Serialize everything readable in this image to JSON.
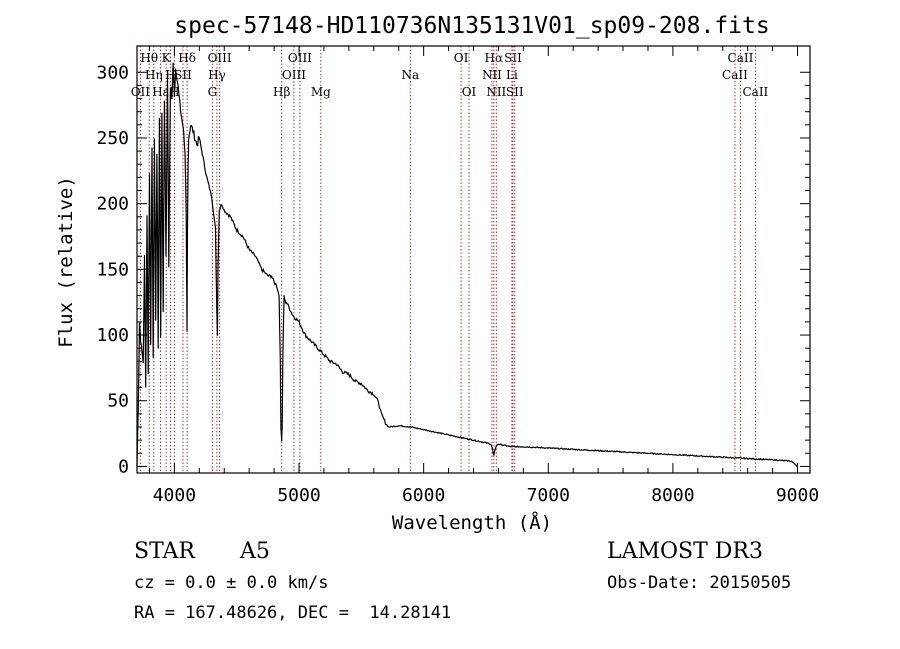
{
  "chart_data": {
    "type": "line",
    "title": "spec-57148-HD110736N135131V01_sp09-208.fits",
    "xlabel": "Wavelength (Å)",
    "ylabel": "Flux (relative)",
    "xlim": [
      3700,
      9100
    ],
    "ylim": [
      -5,
      320
    ],
    "xticks": [
      4000,
      5000,
      6000,
      7000,
      8000,
      9000
    ],
    "yticks": [
      0,
      50,
      100,
      150,
      200,
      250,
      300
    ],
    "series": [
      {
        "name": "flux",
        "x": [
          3700,
          3710,
          3720,
          3735,
          3750,
          3760,
          3770,
          3780,
          3790,
          3800,
          3810,
          3820,
          3830,
          3840,
          3850,
          3860,
          3870,
          3880,
          3890,
          3900,
          3910,
          3920,
          3933,
          3945,
          3955,
          3968,
          3980,
          3990,
          4000,
          4010,
          4030,
          4050,
          4070,
          4085,
          4095,
          4101,
          4105,
          4110,
          4115,
          4130,
          4150,
          4180,
          4200,
          4230,
          4260,
          4300,
          4330,
          4340,
          4345,
          4350,
          4360,
          4380,
          4400,
          4450,
          4500,
          4550,
          4600,
          4650,
          4700,
          4750,
          4780,
          4800,
          4820,
          4840,
          4850,
          4855,
          4861,
          4865,
          4870,
          4880,
          4890,
          4900,
          4950,
          5000,
          5050,
          5100,
          5150,
          5200,
          5250,
          5300,
          5350,
          5400,
          5450,
          5500,
          5550,
          5600,
          5620,
          5640,
          5660,
          5680,
          5700,
          5720,
          5800,
          5900,
          6000,
          6100,
          6200,
          6300,
          6400,
          6500,
          6540,
          6555,
          6563,
          6570,
          6585,
          6600,
          6700,
          6800,
          7000,
          7200,
          7400,
          7600,
          7800,
          8000,
          8200,
          8400,
          8600,
          8800,
          8950,
          8990,
          9000
        ],
        "y": [
          0,
          45,
          110,
          90,
          80,
          160,
          60,
          190,
          70,
          225,
          90,
          245,
          80,
          250,
          110,
          240,
          90,
          265,
          100,
          270,
          120,
          280,
          160,
          300,
          150,
          290,
          280,
          310,
          280,
          300,
          290,
          270,
          260,
          240,
          190,
          100,
          180,
          230,
          250,
          260,
          255,
          245,
          250,
          235,
          220,
          205,
          180,
          120,
          100,
          150,
          195,
          200,
          195,
          190,
          180,
          175,
          165,
          160,
          150,
          145,
          145,
          140,
          138,
          130,
          80,
          30,
          20,
          30,
          80,
          130,
          125,
          125,
          115,
          110,
          100,
          95,
          90,
          85,
          80,
          78,
          72,
          70,
          65,
          63,
          58,
          55,
          52,
          48,
          40,
          36,
          32,
          30,
          31,
          30,
          28,
          26,
          24,
          22,
          20,
          18,
          17,
          12,
          8,
          12,
          16,
          17,
          15,
          15,
          14,
          13,
          12,
          11,
          10,
          9,
          8,
          7,
          6,
          5,
          4,
          1,
          0
        ]
      }
    ],
    "lines": [
      {
        "label": "Hθ",
        "wave": 3798,
        "row": 1
      },
      {
        "label": "OII",
        "wave": 3727,
        "row": 3
      },
      {
        "label": "Hη",
        "wave": 3835,
        "row": 2
      },
      {
        "label": "Hε",
        "wave": 3889,
        "row": 3
      },
      {
        "label": "K",
        "wave": 3934,
        "row": 1
      },
      {
        "label": "H",
        "wave": 3969,
        "row": 2
      },
      {
        "label": "Hδ",
        "wave": 4102,
        "row": 1
      },
      {
        "label": "SII",
        "wave": 4069,
        "row": 2
      },
      {
        "label": "H",
        "wave": 4000,
        "row": 3
      },
      {
        "label": "OIII",
        "wave": 4363,
        "row": 1
      },
      {
        "label": "Hγ",
        "wave": 4341,
        "row": 2
      },
      {
        "label": "G",
        "wave": 4305,
        "row": 3
      },
      {
        "label": "Hβ",
        "wave": 4861,
        "row": 3
      },
      {
        "label": "OIII",
        "wave": 5007,
        "row": 1
      },
      {
        "label": "OIII",
        "wave": 4959,
        "row": 2
      },
      {
        "label": "Mg",
        "wave": 5175,
        "row": 3
      },
      {
        "label": "Na",
        "wave": 5893,
        "row": 2
      },
      {
        "label": "OI",
        "wave": 6300,
        "row": 1
      },
      {
        "label": "OI",
        "wave": 6364,
        "row": 3
      },
      {
        "label": "Hα",
        "wave": 6563,
        "row": 1
      },
      {
        "label": "NII",
        "wave": 6548,
        "row": 2
      },
      {
        "label": "NII",
        "wave": 6583,
        "row": 3
      },
      {
        "label": "SII",
        "wave": 6717,
        "row": 1
      },
      {
        "label": "Li",
        "wave": 6708,
        "row": 2
      },
      {
        "label": "SII",
        "wave": 6731,
        "row": 3
      },
      {
        "label": "CaII",
        "wave": 8542,
        "row": 1
      },
      {
        "label": "CaII",
        "wave": 8498,
        "row": 2
      },
      {
        "label": "CaII",
        "wave": 8662,
        "row": 3
      }
    ]
  },
  "info": {
    "object_class": "STAR",
    "subclass": "A5",
    "survey": "LAMOST DR3",
    "cz": "cz = 0.0 ± 0.0 km/s",
    "obs_date": "Obs-Date: 20150505",
    "coords": "RA = 167.48626, DEC =  14.28141"
  },
  "colors": {
    "axis": "#000000",
    "spectrum": "#000000",
    "line_markers": "#b03030"
  }
}
